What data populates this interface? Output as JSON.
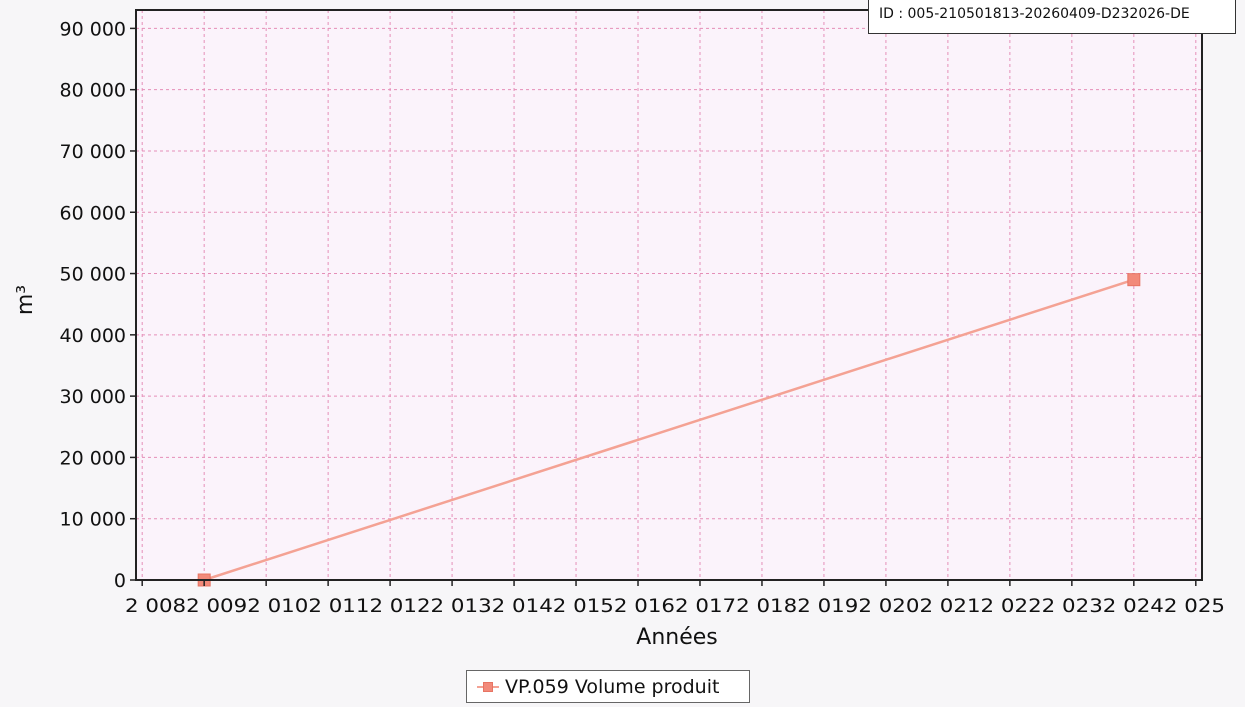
{
  "stamp": {
    "id_text": "ID : 005-210501813-20260409-D232026-DE"
  },
  "chart_data": {
    "type": "line",
    "xlabel": "Années",
    "ylabel": "m³",
    "xlim": [
      2007.9,
      2025.1
    ],
    "ylim": [
      0,
      93000
    ],
    "x_ticks": [
      2008,
      2009,
      2010,
      2011,
      2012,
      2013,
      2014,
      2015,
      2016,
      2017,
      2018,
      2019,
      2020,
      2021,
      2022,
      2023,
      2024,
      2025
    ],
    "x_tick_text": "2 0082 0092 0102 0112 0122 0132 0142 0152 0162 0172 0182 0192 0202 0212 0222 0232 0242 025",
    "y_ticks": [
      0,
      10000,
      20000,
      30000,
      40000,
      50000,
      60000,
      70000,
      80000,
      90000
    ],
    "y_tick_labels": [
      "0",
      "10 000",
      "20 000",
      "30 000",
      "40 000",
      "50 000",
      "60 000",
      "70 000",
      "80 000",
      "90 000"
    ],
    "grid": true,
    "legend_position": "bottom-center",
    "series": [
      {
        "name": "VP.059 Volume produit",
        "color": "#f28a7a",
        "x": [
          2009,
          2024
        ],
        "y": [
          0,
          49000
        ]
      }
    ]
  }
}
